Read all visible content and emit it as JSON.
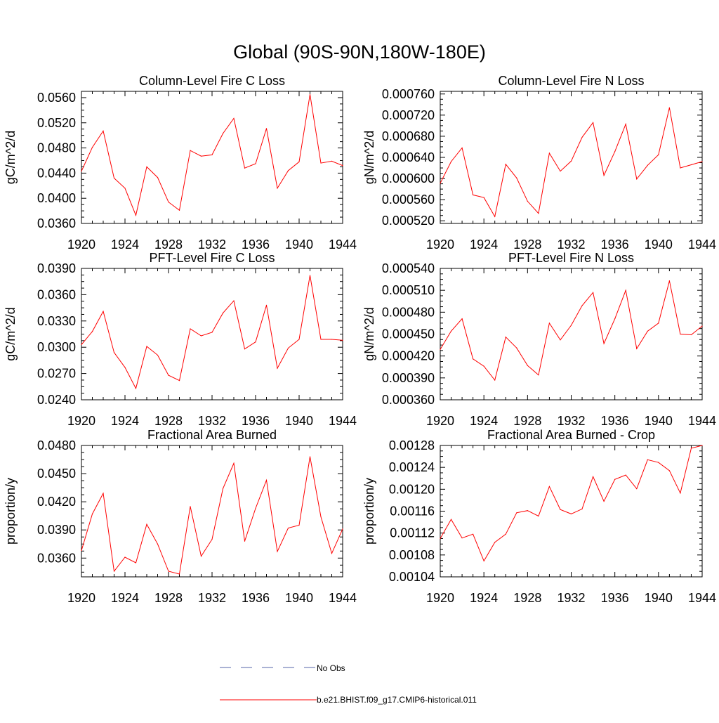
{
  "figure": {
    "title": "Global (90S-90N,180W-180E)",
    "legend": [
      {
        "label": "No Obs",
        "color": "#5566aa",
        "style": "dashed"
      },
      {
        "label": "b.e21.BHIST.f09_g17.CMIP6-historical.011",
        "color": "#ff0000",
        "style": "solid"
      }
    ]
  },
  "chart_data": [
    {
      "type": "line",
      "title": "Column-Level Fire C Loss",
      "ylabel": "gC/m^2/d",
      "xlim": [
        1920,
        1944
      ],
      "ylim": [
        0.036,
        0.057
      ],
      "xticks": [
        "1920",
        "1924",
        "1928",
        "1932",
        "1936",
        "1940",
        "1944"
      ],
      "yticks": [
        "0.0360",
        "0.0400",
        "0.0440",
        "0.0480",
        "0.0520",
        "0.0560"
      ],
      "color": "#ff0000",
      "x": [
        1920,
        1921,
        1922,
        1923,
        1924,
        1925,
        1926,
        1927,
        1928,
        1929,
        1930,
        1931,
        1932,
        1933,
        1934,
        1935,
        1936,
        1937,
        1938,
        1939,
        1940,
        1941,
        1942,
        1943,
        1944
      ],
      "values": [
        0.0443,
        0.0481,
        0.0507,
        0.0432,
        0.0416,
        0.0373,
        0.045,
        0.0433,
        0.0394,
        0.0381,
        0.0476,
        0.0467,
        0.0469,
        0.0503,
        0.0527,
        0.0448,
        0.0455,
        0.0511,
        0.0416,
        0.0444,
        0.0458,
        0.0565,
        0.0456,
        0.0459,
        0.0452
      ]
    },
    {
      "type": "line",
      "title": "Column-Level Fire N Loss",
      "ylabel": "gN/m^2/d",
      "xlim": [
        1920,
        1944
      ],
      "ylim": [
        0.000515,
        0.000765
      ],
      "xticks": [
        "1920",
        "1924",
        "1928",
        "1932",
        "1936",
        "1940",
        "1944"
      ],
      "yticks": [
        "0.000520",
        "0.000560",
        "0.000600",
        "0.000640",
        "0.000680",
        "0.000720",
        "0.000760"
      ],
      "color": "#ff0000",
      "x": [
        1920,
        1921,
        1922,
        1923,
        1924,
        1925,
        1926,
        1927,
        1928,
        1929,
        1930,
        1931,
        1932,
        1933,
        1934,
        1935,
        1936,
        1937,
        1938,
        1939,
        1940,
        1941,
        1942,
        1943,
        1944
      ],
      "values": [
        0.000591,
        0.000632,
        0.000658,
        0.000569,
        0.000564,
        0.000528,
        0.000627,
        0.000601,
        0.000557,
        0.000534,
        0.000648,
        0.000614,
        0.000633,
        0.000678,
        0.000706,
        0.000606,
        0.000651,
        0.000703,
        0.000599,
        0.000625,
        0.000645,
        0.000734,
        0.00062,
        0.000626,
        0.000632
      ]
    },
    {
      "type": "line",
      "title": "PFT-Level Fire C Loss",
      "ylabel": "gC/m^2/d",
      "xlim": [
        1920,
        1944
      ],
      "ylim": [
        0.024,
        0.039
      ],
      "xticks": [
        "1920",
        "1924",
        "1928",
        "1932",
        "1936",
        "1940",
        "1944"
      ],
      "yticks": [
        "0.0240",
        "0.0270",
        "0.0300",
        "0.0330",
        "0.0360",
        "0.0390"
      ],
      "color": "#ff0000",
      "x": [
        1920,
        1921,
        1922,
        1923,
        1924,
        1925,
        1926,
        1927,
        1928,
        1929,
        1930,
        1931,
        1932,
        1933,
        1934,
        1935,
        1936,
        1937,
        1938,
        1939,
        1940,
        1941,
        1942,
        1943,
        1944
      ],
      "values": [
        0.0303,
        0.0318,
        0.0341,
        0.0294,
        0.0277,
        0.0253,
        0.0301,
        0.0291,
        0.0268,
        0.0262,
        0.0321,
        0.0313,
        0.0317,
        0.0339,
        0.0353,
        0.0298,
        0.0306,
        0.0348,
        0.0276,
        0.0299,
        0.0309,
        0.0382,
        0.0309,
        0.0309,
        0.0308
      ]
    },
    {
      "type": "line",
      "title": "PFT-Level Fire N Loss",
      "ylabel": "gN/m^2/d",
      "xlim": [
        1920,
        1944
      ],
      "ylim": [
        0.00036,
        0.00054
      ],
      "xticks": [
        "1920",
        "1924",
        "1928",
        "1932",
        "1936",
        "1940",
        "1944"
      ],
      "yticks": [
        "0.000360",
        "0.000390",
        "0.000420",
        "0.000450",
        "0.000480",
        "0.000510",
        "0.000540"
      ],
      "color": "#ff0000",
      "x": [
        1920,
        1921,
        1922,
        1923,
        1924,
        1925,
        1926,
        1927,
        1928,
        1929,
        1930,
        1931,
        1932,
        1933,
        1934,
        1935,
        1936,
        1937,
        1938,
        1939,
        1940,
        1941,
        1942,
        1943,
        1944
      ],
      "values": [
        0.000429,
        0.000454,
        0.000471,
        0.000416,
        0.000406,
        0.000387,
        0.000446,
        0.000431,
        0.000407,
        0.000394,
        0.000465,
        0.000442,
        0.000462,
        0.000489,
        0.000507,
        0.000437,
        0.000471,
        0.00051,
        0.00043,
        0.000454,
        0.000465,
        0.000523,
        0.00045,
        0.000449,
        0.000461
      ]
    },
    {
      "type": "line",
      "title": "Fractional Area Burned",
      "ylabel": "proportion/y",
      "xlim": [
        1920,
        1944
      ],
      "ylim": [
        0.034,
        0.048
      ],
      "xticks": [
        "1920",
        "1924",
        "1928",
        "1932",
        "1936",
        "1940",
        "1944"
      ],
      "yticks": [
        "0.0360",
        "0.0390",
        "0.0420",
        "0.0450",
        "0.0480"
      ],
      "color": "#ff0000",
      "x": [
        1920,
        1921,
        1922,
        1923,
        1924,
        1925,
        1926,
        1927,
        1928,
        1929,
        1930,
        1931,
        1932,
        1933,
        1934,
        1935,
        1936,
        1937,
        1938,
        1939,
        1940,
        1941,
        1942,
        1943,
        1944
      ],
      "values": [
        0.0368,
        0.0407,
        0.0429,
        0.0346,
        0.0361,
        0.0355,
        0.0396,
        0.0375,
        0.0346,
        0.0343,
        0.0415,
        0.0362,
        0.038,
        0.0434,
        0.0461,
        0.0378,
        0.0413,
        0.0443,
        0.0367,
        0.0392,
        0.0395,
        0.0468,
        0.0404,
        0.0365,
        0.0391
      ]
    },
    {
      "type": "line",
      "title": "Fractional Area Burned - Crop",
      "ylabel": "proportion/y",
      "xlim": [
        1920,
        1944
      ],
      "ylim": [
        0.00104,
        0.00128
      ],
      "xticks": [
        "1920",
        "1924",
        "1928",
        "1932",
        "1936",
        "1940",
        "1944"
      ],
      "yticks": [
        "0.00104",
        "0.00108",
        "0.00112",
        "0.00116",
        "0.00120",
        "0.00124",
        "0.00128"
      ],
      "color": "#ff0000",
      "x": [
        1920,
        1921,
        1922,
        1923,
        1924,
        1925,
        1926,
        1927,
        1928,
        1929,
        1930,
        1931,
        1932,
        1933,
        1934,
        1935,
        1936,
        1937,
        1938,
        1939,
        1940,
        1941,
        1942,
        1943,
        1944
      ],
      "values": [
        0.00111,
        0.001145,
        0.001111,
        0.001118,
        0.001069,
        0.001103,
        0.001118,
        0.001157,
        0.001161,
        0.001151,
        0.001205,
        0.001163,
        0.001155,
        0.001164,
        0.001223,
        0.001178,
        0.001218,
        0.001226,
        0.001201,
        0.001254,
        0.001249,
        0.001234,
        0.001193,
        0.001275,
        0.00128
      ]
    }
  ]
}
